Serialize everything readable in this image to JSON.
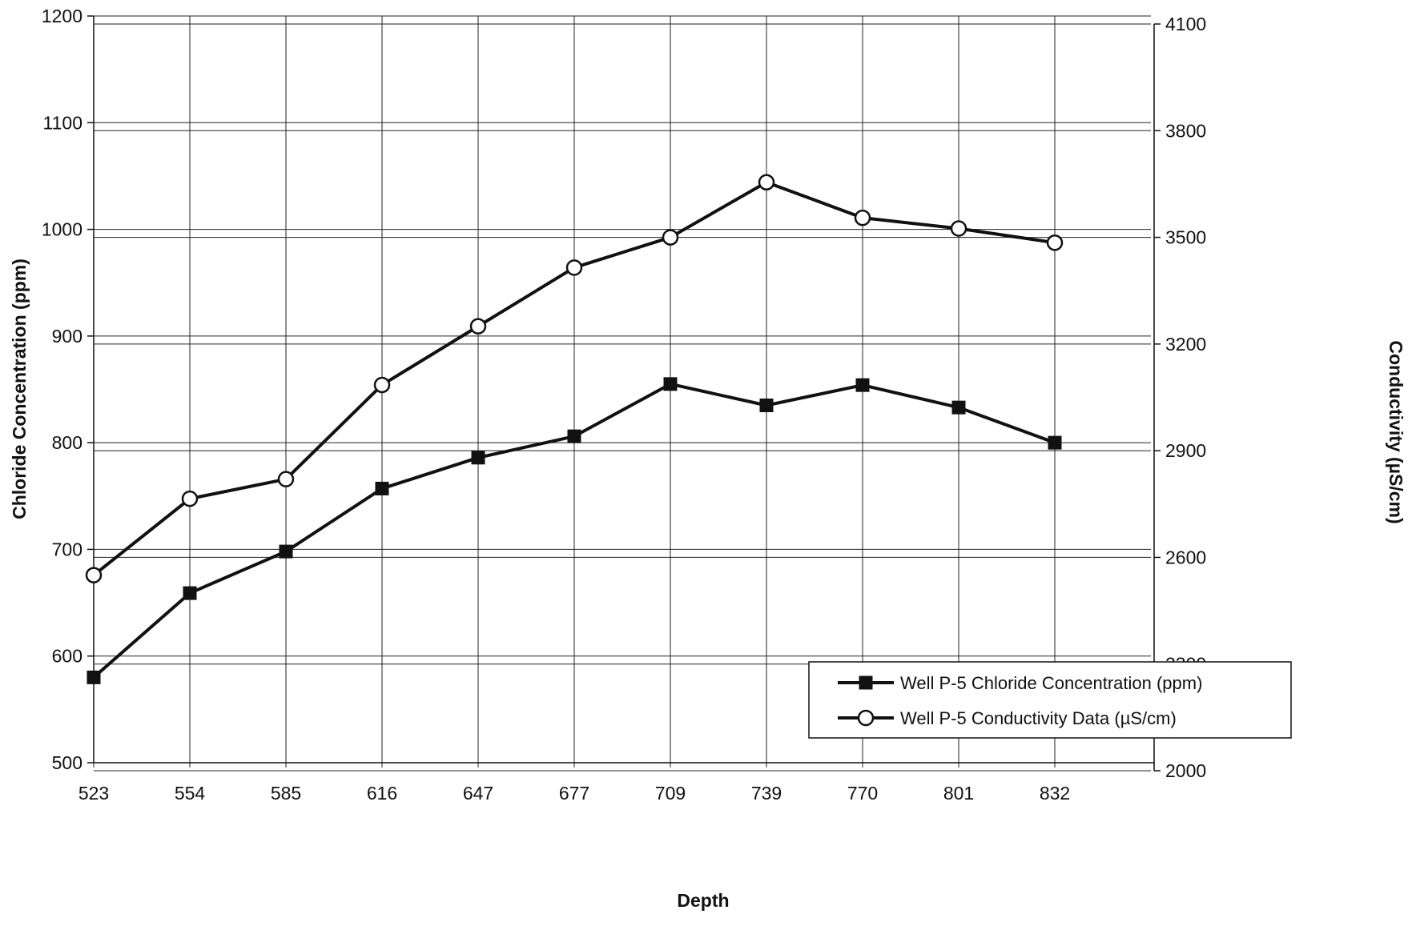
{
  "chart_data": {
    "type": "line",
    "title": "",
    "xlabel": "Depth",
    "ylabel": "Chloride Concentration (ppm)",
    "ylabel_right": "Conductivity (µS/cm)",
    "categories": [
      "523",
      "554",
      "585",
      "616",
      "647",
      "677",
      "709",
      "739",
      "770",
      "801",
      "832"
    ],
    "ylim": [
      500,
      1200
    ],
    "yticks": [
      500,
      600,
      700,
      800,
      900,
      1000,
      1100,
      1200
    ],
    "ylim_right": [
      2000,
      4100
    ],
    "yticks_right": [
      2000,
      2300,
      2600,
      2900,
      3200,
      3500,
      3800,
      4100
    ],
    "grid": true,
    "legend_position": "lower-right",
    "series": [
      {
        "name": "Well P-5 Chloride Concentration (ppm)",
        "axis": "left",
        "marker": "filled-square",
        "color": "#111111",
        "values": [
          580,
          659,
          698,
          757,
          786,
          806,
          855,
          835,
          854,
          833,
          800
        ]
      },
      {
        "name": "Well P-5 Conductivity Data (µS/cm)",
        "axis": "right",
        "marker": "open-circle",
        "color": "#111111",
        "values": [
          2550,
          2765,
          2820,
          3085,
          3250,
          3415,
          3500,
          3655,
          3555,
          3525,
          3485
        ]
      }
    ]
  }
}
